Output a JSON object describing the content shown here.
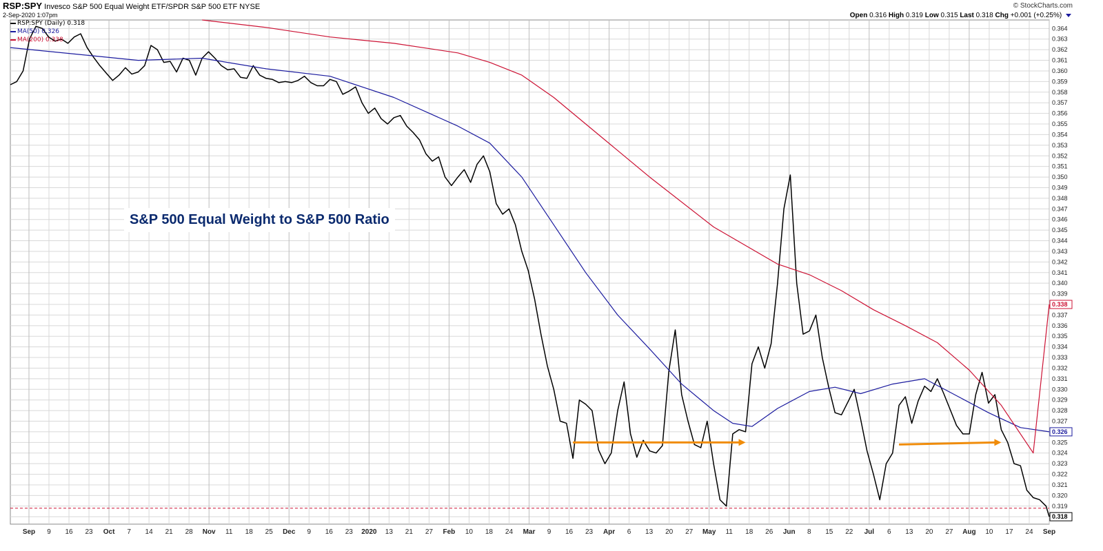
{
  "header": {
    "symbol": "RSP:SPY",
    "description": "Invesco S&P 500 Equal Weight ETF/SPDR S&P 500 ETF",
    "exchange": "NYSE",
    "datetime": "2-Sep-2020 1:07pm",
    "credit": "© StockCharts.com",
    "open_label": "Open",
    "open": "0.316",
    "high_label": "High",
    "high": "0.319",
    "low_label": "Low",
    "low": "0.315",
    "last_label": "Last",
    "last": "0.318",
    "chg_label": "Chg",
    "chg": "+0.001 (+0.25%)"
  },
  "legend": [
    {
      "label": "RSP:SPY (Daily) 0.318",
      "color": "#000000"
    },
    {
      "label": "MA(50) 0.326",
      "color": "#1a1a9e"
    },
    {
      "label": "MA(200) 0.338",
      "color": "#cc1133"
    }
  ],
  "annotation": "S&P 500 Equal Weight to S&P 500 Ratio",
  "colors": {
    "price": "#000000",
    "ma50": "#1a1a9e",
    "ma200": "#cc1133",
    "arrow": "#f08c0a",
    "grid": "#d8d8d8",
    "ref": "#cc1133"
  },
  "chart_data": {
    "type": "line",
    "title": "RSP:SPY Invesco S&P 500 Equal Weight ETF/SPDR S&P 500 ETF",
    "x_labels": [
      "Sep",
      "9",
      "16",
      "23",
      "Oct",
      "7",
      "14",
      "21",
      "28",
      "Nov",
      "11",
      "18",
      "25",
      "Dec",
      "9",
      "16",
      "23",
      "2020",
      "13",
      "21",
      "27",
      "Feb",
      "10",
      "18",
      "24",
      "Mar",
      "9",
      "16",
      "23",
      "Apr",
      "6",
      "13",
      "20",
      "27",
      "May",
      "11",
      "18",
      "26",
      "Jun",
      "8",
      "15",
      "22",
      "Jul",
      "6",
      "13",
      "20",
      "27",
      "Aug",
      "10",
      "17",
      "24",
      "Sep"
    ],
    "y_ticks": [
      "0.318",
      "0.319",
      "0.320",
      "0.321",
      "0.322",
      "0.323",
      "0.324",
      "0.325",
      "0.326",
      "0.327",
      "0.328",
      "0.329",
      "0.330",
      "0.331",
      "0.332",
      "0.333",
      "0.334",
      "0.335",
      "0.336",
      "0.337",
      "0.338",
      "0.339",
      "0.340",
      "0.341",
      "0.342",
      "0.343",
      "0.344",
      "0.345",
      "0.346",
      "0.347",
      "0.348",
      "0.349",
      "0.350",
      "0.351",
      "0.352",
      "0.353",
      "0.354",
      "0.355",
      "0.356",
      "0.357",
      "0.358",
      "0.359",
      "0.360",
      "0.361",
      "0.362",
      "0.363",
      "0.364"
    ],
    "ylim": [
      0.3173,
      0.3648
    ],
    "grid": true,
    "legend_position": "top-left",
    "value_tags": [
      {
        "value": 0.338,
        "label": "0.338",
        "color": "#cc1133"
      },
      {
        "value": 0.326,
        "label": "0.326",
        "color": "#1a1a9e"
      },
      {
        "value": 0.318,
        "label": "0.318",
        "color": "#000000"
      }
    ],
    "reference_line": {
      "value": 0.3188,
      "style": "dashed",
      "color": "#cc1133"
    },
    "series": [
      {
        "name": "RSP:SPY (Daily)",
        "color": "#000000",
        "points": [
          [
            0,
            0.3587
          ],
          [
            2,
            0.359
          ],
          [
            4,
            0.36
          ],
          [
            6,
            0.363
          ],
          [
            8,
            0.3642
          ],
          [
            10,
            0.364
          ],
          [
            12,
            0.3632
          ],
          [
            14,
            0.3628
          ],
          [
            16,
            0.363
          ],
          [
            18,
            0.3626
          ],
          [
            20,
            0.3632
          ],
          [
            22,
            0.3635
          ],
          [
            24,
            0.3622
          ],
          [
            26,
            0.3613
          ],
          [
            28,
            0.3605
          ],
          [
            30,
            0.3598
          ],
          [
            32,
            0.3591
          ],
          [
            34,
            0.3596
          ],
          [
            36,
            0.3603
          ],
          [
            38,
            0.3597
          ],
          [
            40,
            0.3599
          ],
          [
            42,
            0.3605
          ],
          [
            44,
            0.3624
          ],
          [
            46,
            0.362
          ],
          [
            48,
            0.3608
          ],
          [
            50,
            0.3609
          ],
          [
            52,
            0.3599
          ],
          [
            54,
            0.3612
          ],
          [
            56,
            0.361
          ],
          [
            58,
            0.3596
          ],
          [
            60,
            0.3612
          ],
          [
            62,
            0.3618
          ],
          [
            64,
            0.3612
          ],
          [
            66,
            0.3605
          ],
          [
            68,
            0.3601
          ],
          [
            70,
            0.3602
          ],
          [
            72,
            0.3594
          ],
          [
            74,
            0.3593
          ],
          [
            76,
            0.3605
          ],
          [
            78,
            0.3596
          ],
          [
            80,
            0.3593
          ],
          [
            82,
            0.3592
          ],
          [
            84,
            0.3589
          ],
          [
            86,
            0.359
          ],
          [
            88,
            0.3589
          ],
          [
            90,
            0.3591
          ],
          [
            92,
            0.3595
          ],
          [
            94,
            0.3589
          ],
          [
            96,
            0.3586
          ],
          [
            98,
            0.3586
          ],
          [
            100,
            0.3592
          ],
          [
            102,
            0.359
          ],
          [
            104,
            0.3578
          ],
          [
            106,
            0.3581
          ],
          [
            108,
            0.3585
          ],
          [
            110,
            0.357
          ],
          [
            112,
            0.356
          ],
          [
            114,
            0.3565
          ],
          [
            116,
            0.3555
          ],
          [
            118,
            0.355
          ],
          [
            120,
            0.3556
          ],
          [
            122,
            0.3558
          ],
          [
            124,
            0.3548
          ],
          [
            126,
            0.3542
          ],
          [
            128,
            0.3535
          ],
          [
            130,
            0.3522
          ],
          [
            132,
            0.3515
          ],
          [
            134,
            0.3519
          ],
          [
            136,
            0.35
          ],
          [
            138,
            0.3492
          ],
          [
            140,
            0.35
          ],
          [
            142,
            0.3507
          ],
          [
            144,
            0.3495
          ],
          [
            146,
            0.3512
          ],
          [
            148,
            0.352
          ],
          [
            150,
            0.3505
          ],
          [
            152,
            0.3475
          ],
          [
            154,
            0.3465
          ],
          [
            156,
            0.347
          ],
          [
            158,
            0.3455
          ],
          [
            160,
            0.343
          ],
          [
            162,
            0.3412
          ],
          [
            164,
            0.3385
          ],
          [
            166,
            0.3352
          ],
          [
            168,
            0.3322
          ],
          [
            170,
            0.33
          ],
          [
            172,
            0.327
          ],
          [
            174,
            0.3268
          ],
          [
            176,
            0.3235
          ],
          [
            178,
            0.329
          ],
          [
            180,
            0.3286
          ],
          [
            182,
            0.328
          ],
          [
            184,
            0.3243
          ],
          [
            186,
            0.323
          ],
          [
            188,
            0.324
          ],
          [
            190,
            0.328
          ],
          [
            192,
            0.3307
          ],
          [
            194,
            0.3258
          ],
          [
            196,
            0.3236
          ],
          [
            198,
            0.3252
          ],
          [
            200,
            0.3242
          ],
          [
            202,
            0.324
          ],
          [
            204,
            0.3247
          ],
          [
            206,
            0.3317
          ],
          [
            208,
            0.3356
          ],
          [
            210,
            0.3295
          ],
          [
            212,
            0.327
          ],
          [
            214,
            0.3248
          ],
          [
            216,
            0.3245
          ],
          [
            218,
            0.327
          ],
          [
            220,
            0.323
          ],
          [
            222,
            0.3196
          ],
          [
            224,
            0.319
          ],
          [
            226,
            0.3258
          ],
          [
            228,
            0.3262
          ],
          [
            230,
            0.326
          ],
          [
            232,
            0.3324
          ],
          [
            234,
            0.334
          ],
          [
            236,
            0.332
          ],
          [
            238,
            0.3343
          ],
          [
            240,
            0.34
          ],
          [
            242,
            0.347
          ],
          [
            244,
            0.3502
          ],
          [
            246,
            0.34
          ],
          [
            248,
            0.3352
          ],
          [
            250,
            0.3355
          ],
          [
            252,
            0.337
          ],
          [
            254,
            0.333
          ],
          [
            256,
            0.3302
          ],
          [
            258,
            0.3278
          ],
          [
            260,
            0.3276
          ],
          [
            262,
            0.3288
          ],
          [
            264,
            0.33
          ],
          [
            266,
            0.3272
          ],
          [
            268,
            0.3242
          ],
          [
            270,
            0.322
          ],
          [
            272,
            0.3196
          ],
          [
            274,
            0.323
          ],
          [
            276,
            0.324
          ],
          [
            278,
            0.3285
          ],
          [
            280,
            0.3293
          ],
          [
            282,
            0.3268
          ],
          [
            284,
            0.3289
          ],
          [
            286,
            0.3303
          ],
          [
            288,
            0.3298
          ],
          [
            290,
            0.331
          ],
          [
            292,
            0.3296
          ],
          [
            294,
            0.3281
          ],
          [
            296,
            0.3266
          ],
          [
            298,
            0.3258
          ],
          [
            300,
            0.3258
          ],
          [
            302,
            0.3295
          ],
          [
            304,
            0.3316
          ],
          [
            306,
            0.3287
          ],
          [
            308,
            0.3295
          ],
          [
            310,
            0.3262
          ],
          [
            312,
            0.325
          ],
          [
            314,
            0.323
          ],
          [
            316,
            0.3228
          ],
          [
            318,
            0.3205
          ],
          [
            320,
            0.3198
          ],
          [
            322,
            0.3196
          ],
          [
            324,
            0.319
          ],
          [
            325,
            0.318
          ]
        ]
      },
      {
        "name": "MA(50)",
        "color": "#1a1a9e",
        "points": [
          [
            0,
            0.3622
          ],
          [
            40,
            0.361
          ],
          [
            60,
            0.3612
          ],
          [
            80,
            0.3602
          ],
          [
            100,
            0.3595
          ],
          [
            120,
            0.3575
          ],
          [
            140,
            0.3548
          ],
          [
            150,
            0.3532
          ],
          [
            160,
            0.35
          ],
          [
            170,
            0.3455
          ],
          [
            180,
            0.341
          ],
          [
            190,
            0.337
          ],
          [
            200,
            0.3338
          ],
          [
            210,
            0.3305
          ],
          [
            220,
            0.328
          ],
          [
            226,
            0.3268
          ],
          [
            232,
            0.3265
          ],
          [
            240,
            0.3282
          ],
          [
            250,
            0.3298
          ],
          [
            258,
            0.3302
          ],
          [
            266,
            0.3296
          ],
          [
            276,
            0.3305
          ],
          [
            286,
            0.331
          ],
          [
            296,
            0.3294
          ],
          [
            306,
            0.3278
          ],
          [
            316,
            0.3264
          ],
          [
            325,
            0.326
          ]
        ]
      },
      {
        "name": "MA(200)",
        "color": "#cc1133",
        "points": [
          [
            60,
            0.3648
          ],
          [
            80,
            0.3641
          ],
          [
            100,
            0.3632
          ],
          [
            120,
            0.3626
          ],
          [
            140,
            0.3617
          ],
          [
            150,
            0.3608
          ],
          [
            160,
            0.3596
          ],
          [
            170,
            0.3575
          ],
          [
            180,
            0.355
          ],
          [
            200,
            0.35
          ],
          [
            220,
            0.3453
          ],
          [
            240,
            0.3418
          ],
          [
            250,
            0.3408
          ],
          [
            260,
            0.3393
          ],
          [
            270,
            0.3375
          ],
          [
            280,
            0.336
          ],
          [
            290,
            0.3344
          ],
          [
            300,
            0.3318
          ],
          [
            310,
            0.3285
          ],
          [
            320,
            0.324
          ],
          [
            325,
            0.338
          ]
        ]
      }
    ],
    "arrows": [
      {
        "from": [
          0.325,
          0.325
        ],
        "x_from_label": "23",
        "x_to_label": "18"
      },
      {
        "from": [
          0.3248,
          0.325
        ],
        "x_from_label": "13",
        "x_to_label": "24"
      }
    ]
  }
}
